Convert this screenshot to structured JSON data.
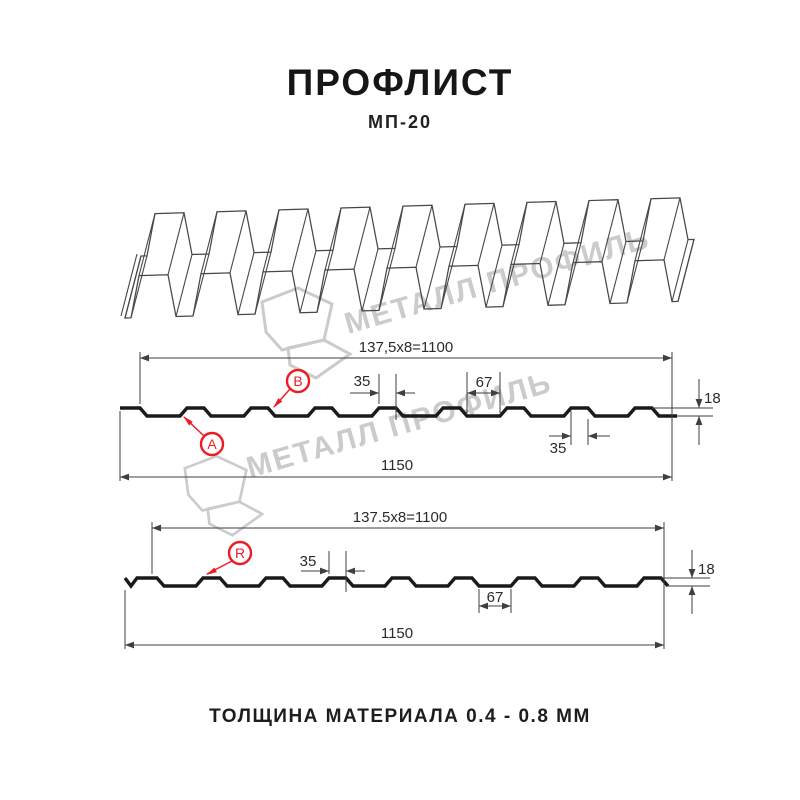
{
  "header": {
    "title": "ПРОФЛИСТ",
    "subtitle": "МП-20"
  },
  "footer": {
    "text": "ТОЛЩИНА МАТЕРИАЛА 0.4 - 0.8 ММ"
  },
  "watermark": {
    "text": "МЕТАЛЛ ПРОФИЛЬ",
    "logo": "metall-profil-pentagon-logo"
  },
  "colors": {
    "red": "#ed1c24",
    "dim_line": "#3f3f3f",
    "profile_line": "#1a1a1a",
    "watermark": "#cbcbcb"
  },
  "diagram1": {
    "module_dim": "137,5x8=1100",
    "crest_width_dim": "35",
    "valley_width_dim": "67",
    "height_dim": "18",
    "bottom_crest_dim": "35",
    "total_width_dim": "1150",
    "label_a": "A",
    "label_b": "B"
  },
  "diagram2": {
    "module_dim": "137.5x8=1100",
    "crest_width_dim": "35",
    "valley_width_dim": "67",
    "height_dim": "18",
    "total_width_dim": "1150",
    "label_r": "R"
  }
}
